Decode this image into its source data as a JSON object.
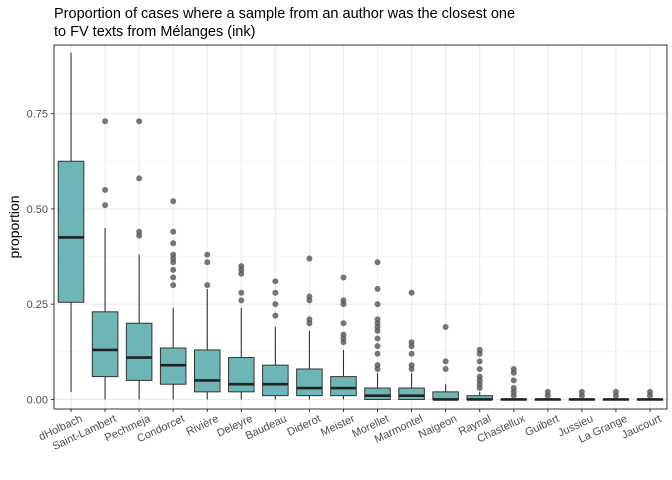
{
  "chart_data": {
    "type": "boxplot",
    "title_line1": "Proportion of cases where a sample from an author was the closest one",
    "title_line2": "to FV texts from Mélanges (ink)",
    "xlabel": "",
    "ylabel": "proportion",
    "ylim": [
      -0.025,
      0.93
    ],
    "y_ticks": [
      0.0,
      0.25,
      0.5,
      0.75
    ],
    "y_tick_labels": [
      "0.00",
      "0.25",
      "0.50",
      "0.75"
    ],
    "grid": true,
    "fill_color": "#66b2b2",
    "outlier_color": "#555555",
    "categories": [
      "dHolbach",
      "Saint-Lambert",
      "Pechmeja",
      "Condorcet",
      "Rivière",
      "Deleyre",
      "Baudeau",
      "Diderot",
      "Meister",
      "Morellet",
      "Marmontel",
      "Naigeon",
      "Raynal",
      "Chastellux",
      "Guibert",
      "Jussieu",
      "La Grange",
      "Jaucourt"
    ],
    "boxes": [
      {
        "category": "dHolbach",
        "whisker_low": 0.02,
        "q1": 0.255,
        "median": 0.425,
        "q3": 0.625,
        "whisker_high": 0.91,
        "outliers": []
      },
      {
        "category": "Saint-Lambert",
        "whisker_low": 0.0,
        "q1": 0.06,
        "median": 0.13,
        "q3": 0.23,
        "whisker_high": 0.45,
        "outliers": [
          0.51,
          0.55,
          0.73
        ]
      },
      {
        "category": "Pechmeja",
        "whisker_low": 0.0,
        "q1": 0.05,
        "median": 0.11,
        "q3": 0.2,
        "whisker_high": 0.38,
        "outliers": [
          0.43,
          0.44,
          0.58,
          0.73
        ]
      },
      {
        "category": "Condorcet",
        "whisker_low": 0.0,
        "q1": 0.04,
        "median": 0.09,
        "q3": 0.135,
        "whisker_high": 0.24,
        "outliers": [
          0.3,
          0.32,
          0.34,
          0.36,
          0.37,
          0.38,
          0.41,
          0.44,
          0.52
        ]
      },
      {
        "category": "Rivière",
        "whisker_low": 0.0,
        "q1": 0.02,
        "median": 0.05,
        "q3": 0.13,
        "whisker_high": 0.29,
        "outliers": [
          0.3,
          0.36,
          0.38
        ]
      },
      {
        "category": "Deleyre",
        "whisker_low": 0.0,
        "q1": 0.02,
        "median": 0.04,
        "q3": 0.11,
        "whisker_high": 0.24,
        "outliers": [
          0.26,
          0.28,
          0.33,
          0.34,
          0.35
        ]
      },
      {
        "category": "Baudeau",
        "whisker_low": 0.0,
        "q1": 0.01,
        "median": 0.04,
        "q3": 0.09,
        "whisker_high": 0.19,
        "outliers": [
          0.22,
          0.25,
          0.28,
          0.31
        ]
      },
      {
        "category": "Diderot",
        "whisker_low": 0.0,
        "q1": 0.01,
        "median": 0.03,
        "q3": 0.08,
        "whisker_high": 0.18,
        "outliers": [
          0.2,
          0.21,
          0.26,
          0.27,
          0.37
        ]
      },
      {
        "category": "Meister",
        "whisker_low": 0.0,
        "q1": 0.01,
        "median": 0.03,
        "q3": 0.06,
        "whisker_high": 0.13,
        "outliers": [
          0.15,
          0.16,
          0.17,
          0.2,
          0.25,
          0.26,
          0.32
        ]
      },
      {
        "category": "Morellet",
        "whisker_low": 0.0,
        "q1": 0.0,
        "median": 0.01,
        "q3": 0.03,
        "whisker_high": 0.07,
        "outliers": [
          0.08,
          0.09,
          0.12,
          0.14,
          0.16,
          0.18,
          0.19,
          0.2,
          0.21,
          0.25,
          0.29,
          0.36
        ]
      },
      {
        "category": "Marmontel",
        "whisker_low": 0.0,
        "q1": 0.0,
        "median": 0.01,
        "q3": 0.03,
        "whisker_high": 0.07,
        "outliers": [
          0.08,
          0.09,
          0.12,
          0.14,
          0.15,
          0.28
        ]
      },
      {
        "category": "Naigeon",
        "whisker_low": 0.0,
        "q1": 0.0,
        "median": 0.0,
        "q3": 0.02,
        "whisker_high": 0.04,
        "outliers": [
          0.08,
          0.1,
          0.19
        ]
      },
      {
        "category": "Raynal",
        "whisker_low": 0.0,
        "q1": 0.0,
        "median": 0.0,
        "q3": 0.01,
        "whisker_high": 0.02,
        "outliers": [
          0.03,
          0.04,
          0.05,
          0.06,
          0.08,
          0.1,
          0.12,
          0.13
        ]
      },
      {
        "category": "Chastellux",
        "whisker_low": 0.0,
        "q1": 0.0,
        "median": 0.0,
        "q3": 0.0,
        "whisker_high": 0.0,
        "outliers": [
          0.01,
          0.02,
          0.03,
          0.05,
          0.07,
          0.08
        ]
      },
      {
        "category": "Guibert",
        "whisker_low": 0.0,
        "q1": 0.0,
        "median": 0.0,
        "q3": 0.0,
        "whisker_high": 0.0,
        "outliers": [
          0.01,
          0.02
        ]
      },
      {
        "category": "Jussieu",
        "whisker_low": 0.0,
        "q1": 0.0,
        "median": 0.0,
        "q3": 0.0,
        "whisker_high": 0.0,
        "outliers": [
          0.01,
          0.02
        ]
      },
      {
        "category": "La Grange",
        "whisker_low": 0.0,
        "q1": 0.0,
        "median": 0.0,
        "q3": 0.0,
        "whisker_high": 0.0,
        "outliers": [
          0.01,
          0.02
        ]
      },
      {
        "category": "Jaucourt",
        "whisker_low": 0.0,
        "q1": 0.0,
        "median": 0.0,
        "q3": 0.0,
        "whisker_high": 0.0,
        "outliers": [
          0.01,
          0.02
        ]
      }
    ]
  }
}
